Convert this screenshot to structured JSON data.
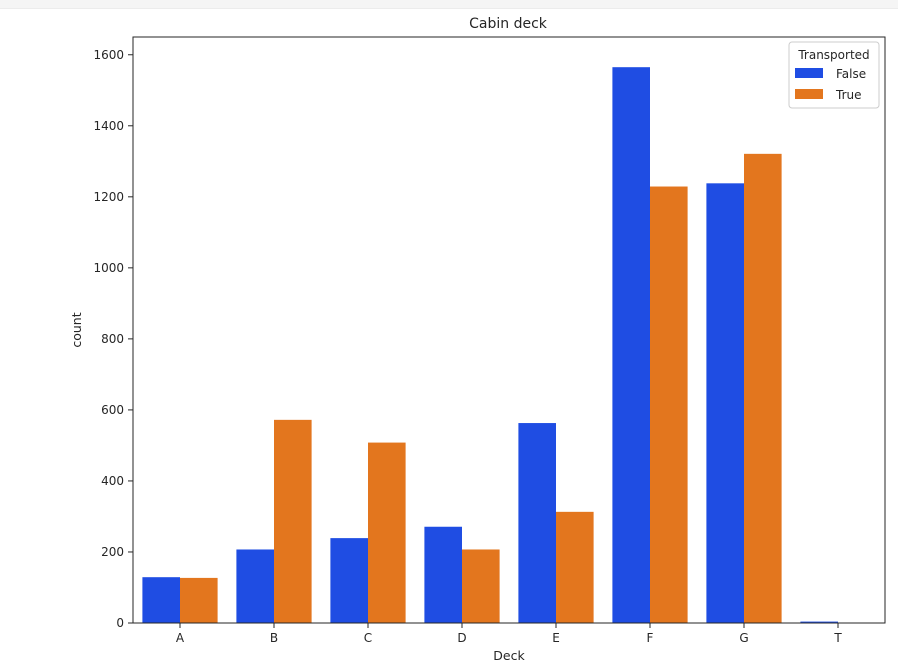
{
  "chart_data": {
    "type": "bar",
    "title": "Cabin deck",
    "xlabel": "Deck",
    "ylabel": "count",
    "categories": [
      "A",
      "B",
      "C",
      "D",
      "E",
      "F",
      "G",
      "T"
    ],
    "series": [
      {
        "name": "False",
        "color": "#1f4de3",
        "values": [
          129,
          207,
          239,
          271,
          563,
          1565,
          1238,
          4
        ]
      },
      {
        "name": "True",
        "color": "#e3761e",
        "values": [
          127,
          572,
          508,
          207,
          313,
          1229,
          1321,
          1
        ]
      }
    ],
    "ylim": [
      0,
      1650
    ],
    "yticks": [
      0,
      200,
      400,
      600,
      800,
      1000,
      1200,
      1400,
      1600
    ],
    "legend": {
      "title": "Transported",
      "placement": "top-right"
    },
    "grid": false
  }
}
